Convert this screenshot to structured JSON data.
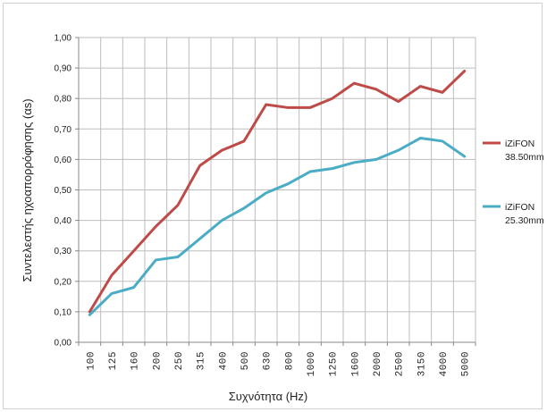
{
  "chart_data": {
    "type": "line",
    "xlabel": "Συχνότητα (Hz)",
    "ylabel": "Συντελεστής ηχοαπορρόφησης (αs)",
    "categories": [
      "100",
      "125",
      "160",
      "200",
      "250",
      "315",
      "400",
      "500",
      "630",
      "800",
      "1000",
      "1250",
      "1600",
      "2000",
      "2500",
      "3150",
      "4000",
      "5000"
    ],
    "ylim": [
      0,
      1
    ],
    "yticks": [
      "0,00",
      "0,10",
      "0,20",
      "0,30",
      "0,40",
      "0,50",
      "0,60",
      "0,70",
      "0,80",
      "0,90",
      "1,00"
    ],
    "grid": true,
    "legend_position": "right",
    "series": [
      {
        "name": "iZiFON 38.50mm",
        "name_lines": [
          "iZiFON",
          "38.50mm"
        ],
        "color": "#be4b48",
        "values": [
          0.1,
          0.22,
          0.3,
          0.38,
          0.45,
          0.58,
          0.63,
          0.66,
          0.78,
          0.77,
          0.77,
          0.8,
          0.85,
          0.83,
          0.79,
          0.84,
          0.82,
          0.89
        ]
      },
      {
        "name": "iZiFON 25.30mm",
        "name_lines": [
          "iZiFON",
          "25.30mm"
        ],
        "color": "#4bacc6",
        "values": [
          0.09,
          0.16,
          0.18,
          0.27,
          0.28,
          0.34,
          0.4,
          0.44,
          0.49,
          0.52,
          0.56,
          0.57,
          0.59,
          0.6,
          0.63,
          0.67,
          0.66,
          0.61
        ]
      }
    ]
  }
}
